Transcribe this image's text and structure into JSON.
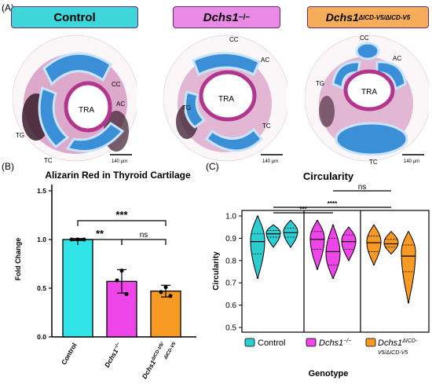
{
  "panels": {
    "a": "(A)",
    "b": "(B)",
    "c": "(C)"
  },
  "panel_a": {
    "headers": [
      {
        "label": "Control",
        "sup": "",
        "color": "#3dd6d9"
      },
      {
        "label": "Dchs1",
        "sup": "−/−",
        "color": "#e98ae6"
      },
      {
        "label": "Dchs1",
        "sup": "ΔICD-V5/ΔICD-V5",
        "color": "#f5ad5a"
      }
    ],
    "images": [
      {
        "labels": [
          "CC",
          "AC",
          "TRA",
          "TG",
          "TC"
        ],
        "scale": "140 µm"
      },
      {
        "labels": [
          "CC",
          "AC",
          "TRA",
          "TG",
          "TC"
        ],
        "scale": "140 µm"
      },
      {
        "labels": [
          "CC",
          "AC",
          "TRA",
          "TG",
          "TC"
        ],
        "scale": "140 µm"
      }
    ],
    "colors": {
      "cartilage": "#3a8fd6",
      "stain": "#b0368e",
      "dark": "#3a1c2c"
    }
  },
  "chart_data": [
    {
      "type": "bar",
      "title": "Alizarin Red in Thyroid Cartilage",
      "xlabel": "",
      "ylabel": "Fold Change",
      "ylim": [
        0,
        1.5
      ],
      "yticks": [
        "0.0",
        "0.5",
        "1.0",
        "1.5"
      ],
      "categories": [
        "Control",
        "Dchs1−/−",
        "Dchs1ΔICD-V5/ΔICD-V5"
      ],
      "category_labels": [
        {
          "main": "Control",
          "sup": "",
          "line2": ""
        },
        {
          "main": "Dchs1",
          "sup": "−/−",
          "line2": ""
        },
        {
          "main": "Dchs1",
          "sup": "ΔICD-V5/",
          "line2": "ΔICD-V5"
        }
      ],
      "values": [
        1.0,
        0.57,
        0.47
      ],
      "errors": [
        0.01,
        0.12,
        0.06
      ],
      "points": [
        [
          1.0,
          1.0,
          1.0
        ],
        [
          0.68,
          0.58,
          0.44
        ],
        [
          0.51,
          0.46,
          0.42
        ]
      ],
      "colors": [
        "#2fe3e6",
        "#ee45e8",
        "#f79a24"
      ],
      "significance": [
        {
          "from": 0,
          "to": 2,
          "label": "***"
        },
        {
          "from": 0,
          "to": 1,
          "label": "**"
        },
        {
          "from": 1,
          "to": 2,
          "label": "ns"
        }
      ]
    },
    {
      "type": "violin",
      "title": "Circularity",
      "xlabel": "Genotype",
      "ylabel": "Circularity",
      "ylim": [
        0.5,
        1.0
      ],
      "yticks": [
        "0.5",
        "0.6",
        "0.7",
        "0.8",
        "0.9",
        "1.0"
      ],
      "groups": [
        {
          "name": "Control",
          "sup": "",
          "line2": "",
          "color": "#2ccdd0",
          "violins": [
            {
              "min": 0.72,
              "max": 1.0,
              "q1": 0.83,
              "median": 0.885,
              "q3": 0.92,
              "mode": 0.89
            },
            {
              "min": 0.86,
              "max": 0.96,
              "q1": 0.905,
              "median": 0.92,
              "q3": 0.935,
              "mode": 0.925
            },
            {
              "min": 0.86,
              "max": 0.98,
              "q1": 0.905,
              "median": 0.925,
              "q3": 0.945,
              "mode": 0.93
            }
          ]
        },
        {
          "name": "Dchs1",
          "sup": "−/−",
          "line2": "",
          "color": "#ee45e8",
          "violins": [
            {
              "min": 0.76,
              "max": 0.98,
              "q1": 0.85,
              "median": 0.895,
              "q3": 0.93,
              "mode": 0.9
            },
            {
              "min": 0.72,
              "max": 0.96,
              "q1": 0.78,
              "median": 0.84,
              "q3": 0.9,
              "mode": 0.83
            },
            {
              "min": 0.8,
              "max": 0.95,
              "q1": 0.85,
              "median": 0.885,
              "q3": 0.915,
              "mode": 0.89
            }
          ]
        },
        {
          "name": "Dchs1",
          "sup": "ΔICD-",
          "line2": "V5/ΔICD-V5",
          "color": "#f79a24",
          "violins": [
            {
              "min": 0.78,
              "max": 0.96,
              "q1": 0.84,
              "median": 0.88,
              "q3": 0.91,
              "mode": 0.885
            },
            {
              "min": 0.83,
              "max": 0.93,
              "q1": 0.86,
              "median": 0.875,
              "q3": 0.895,
              "mode": 0.88
            },
            {
              "min": 0.61,
              "max": 0.93,
              "q1": 0.75,
              "median": 0.82,
              "q3": 0.87,
              "mode": 0.84
            }
          ]
        }
      ],
      "significance": [
        {
          "from": 0,
          "to": 1,
          "label": "***"
        },
        {
          "from": 0,
          "to": 2,
          "label": "****"
        },
        {
          "from": 1,
          "to": 2,
          "label": "ns"
        }
      ]
    }
  ]
}
